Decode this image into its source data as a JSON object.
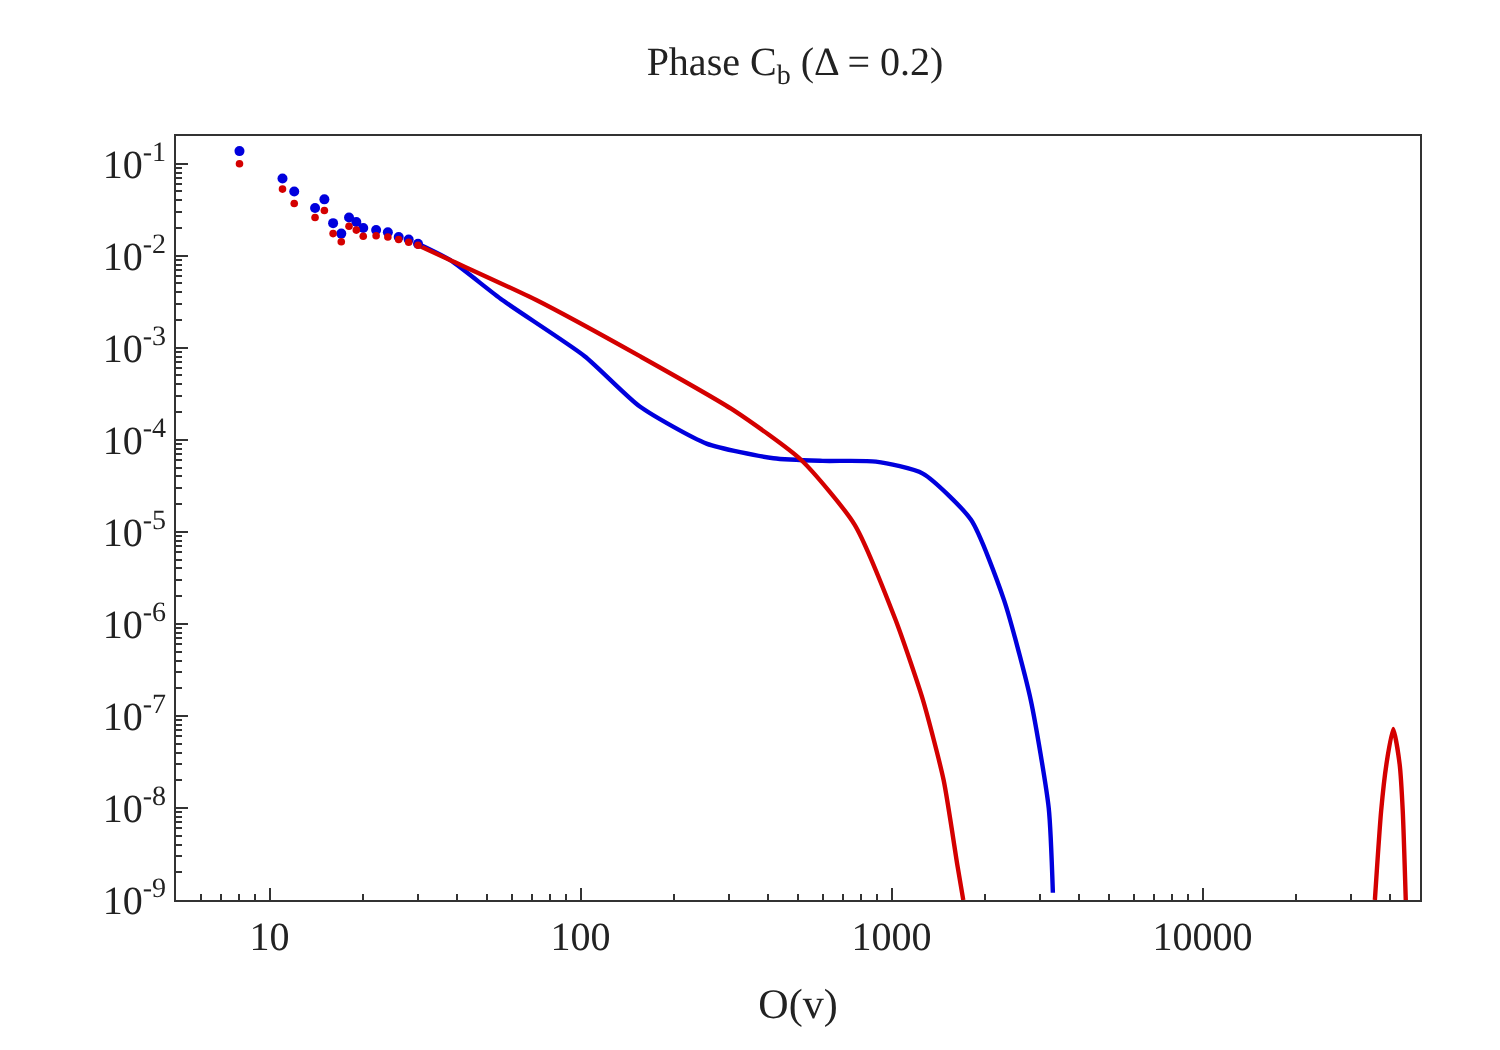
{
  "chart_data": {
    "type": "scatter",
    "title": "Phase C$_{b}$ (Δ = 0.2)",
    "xlabel": "O(v)",
    "log": "xy",
    "xlim": [
      5,
      50000
    ],
    "ylim": [
      1e-09,
      0.2
    ],
    "xticks": [
      10,
      100,
      1000,
      10000
    ],
    "yticks": [
      {
        "value": 0.1,
        "label": "10$^{-1}$"
      },
      {
        "value": 0.01,
        "label": "10$^{-2}$"
      },
      {
        "value": 0.001,
        "label": "10$^{-3}$"
      },
      {
        "value": 0.0001,
        "label": "10$^{-4}$"
      },
      {
        "value": 1e-05,
        "label": "10$^{-5}$"
      },
      {
        "value": 1e-06,
        "label": "10$^{-6}$"
      },
      {
        "value": 1e-07,
        "label": "10$^{-7}$"
      },
      {
        "value": 1e-08,
        "label": "10$^{-8}$"
      },
      {
        "value": 1e-09,
        "label": "10$^{-9}$"
      }
    ],
    "series": [
      {
        "marker": "circle",
        "color": "#0000dd",
        "x": [
          8,
          11,
          12,
          14,
          15,
          16,
          17,
          18,
          19,
          20,
          22,
          24,
          26,
          28,
          30
        ],
        "values": [
          0.137,
          0.069,
          0.05,
          0.033,
          0.041,
          0.0226,
          0.0174,
          0.026,
          0.0233,
          0.02,
          0.019,
          0.018,
          0.016,
          0.015,
          0.0135
        ]
      },
      {
        "marker": "circle",
        "color": "#d40000",
        "x": [
          8,
          11,
          12,
          14,
          15,
          16,
          17,
          18,
          19,
          20,
          22,
          24,
          26,
          28,
          30
        ],
        "values": [
          0.1,
          0.053,
          0.037,
          0.026,
          0.031,
          0.0174,
          0.0142,
          0.0209,
          0.019,
          0.0163,
          0.0165,
          0.016,
          0.015,
          0.014,
          0.013
        ]
      },
      {
        "type": "line",
        "marker": "none",
        "color": "#0000dd",
        "x": [
          30,
          38,
          56,
          103,
          155,
          254,
          417,
          600,
          890,
          1260,
          1800,
          2300,
          2800,
          3200,
          3300
        ],
        "values": [
          0.0135,
          0.009,
          0.0033,
          0.00081,
          0.00023,
          9.1e-05,
          6.3e-05,
          5.9e-05,
          5.8e-05,
          4.3e-05,
          1.35e-05,
          1.8e-06,
          1.5e-07,
          1e-08,
          1.2e-09
        ]
      },
      {
        "type": "line",
        "marker": "none",
        "color": "#d40000",
        "x": [
          30,
          38,
          72,
          155,
          310,
          513,
          760,
          1030,
          1260,
          1470,
          1630,
          1700
        ],
        "values": [
          0.013,
          0.009,
          0.0033,
          0.00081,
          0.00021,
          6e-05,
          1.2e-05,
          1.1e-06,
          1.5e-07,
          2e-08,
          2.3e-09,
          1e-09
        ]
      },
      {
        "type": "line",
        "marker": "none",
        "color": "#d40000",
        "x": [
          35800,
          37500,
          39000,
          41000,
          43000,
          44000,
          45000
        ],
        "values": [
          1e-09,
          9.3e-09,
          3e-08,
          7.2e-08,
          3e-08,
          9.3e-09,
          1e-09
        ]
      }
    ]
  }
}
